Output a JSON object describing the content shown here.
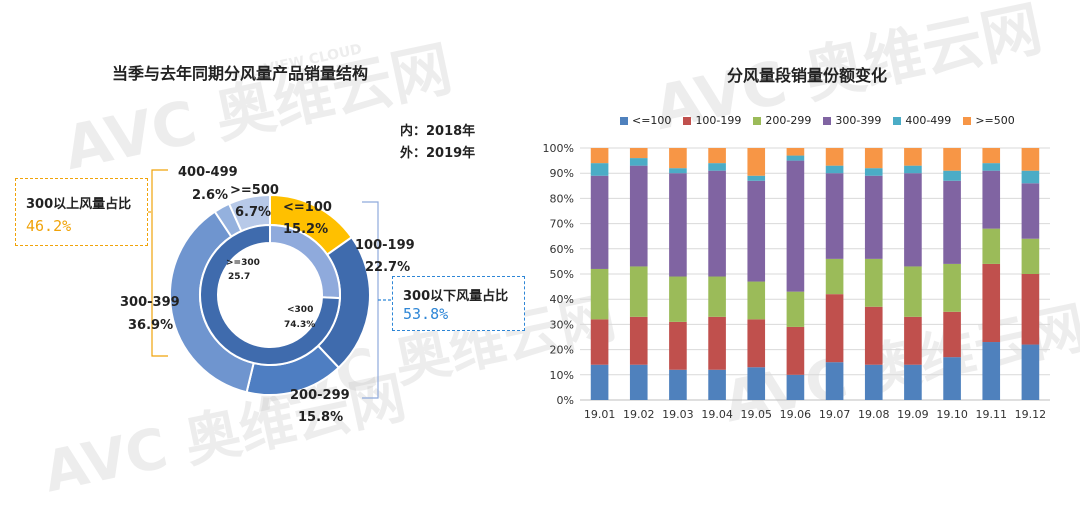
{
  "watermark": "AVC 奥维云网",
  "watermark_sub": "ALL VIEW CLOUD",
  "chart_data": [
    {
      "type": "pie",
      "title": "当季与去年同期分风量产品销量结构",
      "ring_note_inner": "内：2018年",
      "ring_note_outer": "外：2019年",
      "outer_series": {
        "name": "2019年",
        "slices": [
          {
            "label": "<=100",
            "value": 15.2,
            "value_text": "15.2%",
            "color": "#FFC000"
          },
          {
            "label": "100-199",
            "value": 22.7,
            "value_text": "22.7%",
            "color": "#3F6BAD"
          },
          {
            "label": "200-299",
            "value": 15.8,
            "value_text": "15.8%",
            "color": "#4E7EC2"
          },
          {
            "label": "300-399",
            "value": 36.9,
            "value_text": "36.9%",
            "color": "#6F95CF"
          },
          {
            "label": "400-499",
            "value": 2.6,
            "value_text": "2.6%",
            "color": "#94B1DE"
          },
          {
            "label": ">=500",
            "value": 6.7,
            "value_text": "6.7%",
            "color": "#B7C9E8"
          }
        ]
      },
      "inner_series": {
        "name": "2018年",
        "slices": [
          {
            "label": ">=300",
            "value": 25.7,
            "text": "25.7",
            "color": "#8FAADC"
          },
          {
            "label": "<300",
            "value": 74.3,
            "text": "74.3%",
            "color": "#3F6BAD"
          }
        ]
      },
      "callouts": {
        "above": {
          "label": "300以上风量占比",
          "value": "46.2%",
          "color": "#F0A30A"
        },
        "below": {
          "label": "300以下风量占比",
          "value": "53.8%",
          "color": "#2E86D6"
        }
      }
    },
    {
      "type": "bar",
      "stacked": true,
      "title": "分风量段销量份额变化",
      "categories": [
        "19.01",
        "19.02",
        "19.03",
        "19.04",
        "19.05",
        "19.06",
        "19.07",
        "19.08",
        "19.09",
        "19.10",
        "19.11",
        "19.12"
      ],
      "yticks": [
        "0%",
        "10%",
        "20%",
        "30%",
        "40%",
        "50%",
        "60%",
        "70%",
        "80%",
        "90%",
        "100%"
      ],
      "ylim": [
        0,
        100
      ],
      "grid": true,
      "legend_position": "top",
      "series": [
        {
          "name": "<=100",
          "color": "#4F81BD",
          "values": [
            14,
            14,
            12,
            12,
            13,
            10,
            15,
            14,
            14,
            17,
            23,
            22
          ]
        },
        {
          "name": "100-199",
          "color": "#C0504D",
          "values": [
            18,
            19,
            19,
            21,
            19,
            19,
            27,
            23,
            19,
            18,
            31,
            28
          ]
        },
        {
          "name": "200-299",
          "color": "#9BBB59",
          "values": [
            20,
            20,
            18,
            16,
            15,
            14,
            14,
            19,
            20,
            19,
            14,
            14
          ]
        },
        {
          "name": "300-399",
          "color": "#8064A2",
          "values": [
            37,
            40,
            41,
            42,
            40,
            52,
            34,
            33,
            37,
            33,
            23,
            22
          ]
        },
        {
          "name": "400-499",
          "color": "#4BACC6",
          "values": [
            5,
            3,
            2,
            3,
            2,
            2,
            3,
            3,
            3,
            4,
            3,
            5
          ]
        },
        {
          "name": ">=500",
          "color": "#F79646",
          "values": [
            6,
            4,
            8,
            6,
            11,
            3,
            7,
            8,
            7,
            9,
            6,
            9
          ]
        }
      ]
    }
  ]
}
